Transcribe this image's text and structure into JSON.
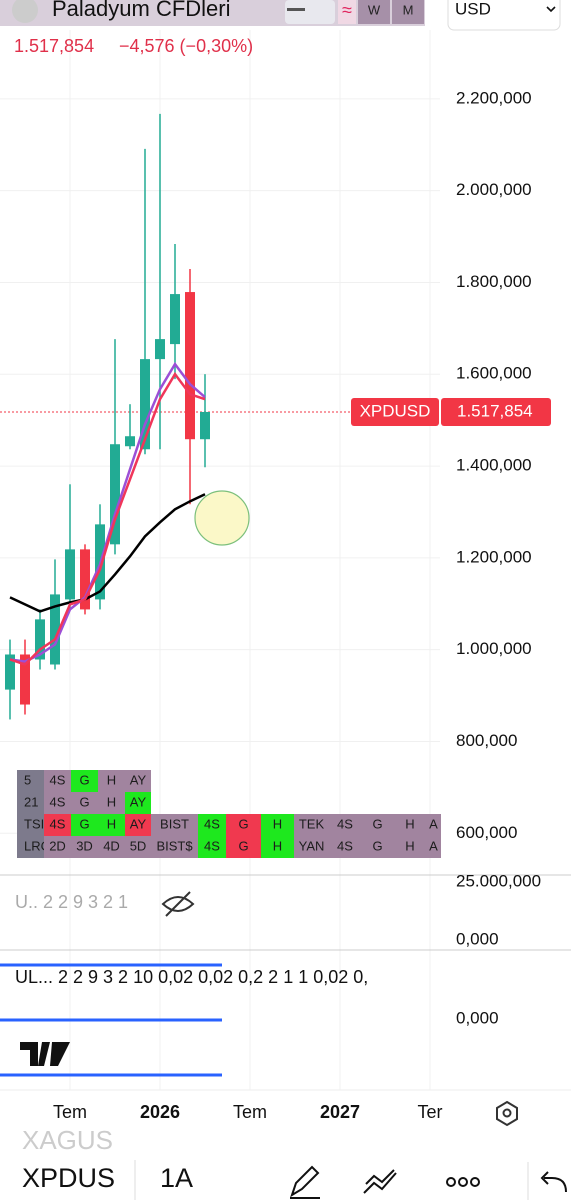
{
  "header": {
    "title": "Paladyum CFDleri",
    "intervals": [
      "W",
      "M"
    ],
    "currency": "USD",
    "change": "−4,576 (−0,30%)"
  },
  "chart_data": {
    "type": "candlestick",
    "categories": [
      null,
      null,
      null,
      null,
      "Tem",
      null,
      null,
      null,
      null,
      null,
      "2026",
      null,
      null,
      null,
      null,
      null,
      "Tem",
      null,
      null,
      null,
      null,
      null,
      "2027",
      null,
      null,
      null,
      null,
      null,
      "Ter"
    ],
    "open": [
      913000,
      989500,
      978600,
      967700,
      1109500,
      1218500,
      1109500,
      1229500,
      1443200,
      1436600,
      1633000,
      1665700,
      1779100,
      1458500,
      null,
      null,
      null,
      null,
      null,
      null,
      null,
      null,
      null,
      null,
      null,
      null,
      null,
      null,
      null
    ],
    "high": [
      1022000,
      1022000,
      1087700,
      1196700,
      1360300,
      1229500,
      1316700,
      1676600,
      1534800,
      2091000,
      2167300,
      1883800,
      1829200,
      1600200,
      null,
      null,
      null,
      null,
      null,
      null,
      null,
      null,
      null,
      null,
      null,
      null,
      null,
      null,
      null
    ],
    "low": [
      848000,
      858700,
      956800,
      956800,
      1087700,
      1076800,
      1087700,
      1207600,
      1436600,
      1425700,
      1436600,
      1589300,
      1316700,
      1397400,
      null,
      null,
      null,
      null,
      null,
      null,
      null,
      null,
      null,
      null,
      null,
      null,
      null,
      null,
      null
    ],
    "close": [
      989500,
      880500,
      1066000,
      1120400,
      1218500,
      1087700,
      1273000,
      1447600,
      1465000,
      1633000,
      1676600,
      1774700,
      1458500,
      1517854,
      null,
      null,
      null,
      null,
      null,
      null,
      null,
      null,
      null,
      null,
      null,
      null,
      null,
      null,
      null
    ],
    "up_color": "#22ab94",
    "down_color": "#f23645",
    "lines": [
      {
        "color": "#000000",
        "values": [
          1113900,
          1098600,
          1083300,
          1094200,
          1103000,
          1109500,
          1126900,
          1164000,
          1203300,
          1246900,
          1277400,
          1305800,
          1323200,
          1338500,
          null,
          null,
          null,
          null,
          null,
          null,
          null,
          null,
          null,
          null,
          null,
          null,
          null,
          null,
          null
        ]
      },
      {
        "color": "#9c4fd6",
        "values": [
          978600,
          974300,
          989500,
          1011400,
          1087700,
          1113900,
          1185800,
          1294900,
          1393000,
          1491200,
          1567500,
          1622000,
          1578400,
          1550100,
          null,
          null,
          null,
          null,
          null,
          null,
          null,
          null,
          null,
          null,
          null,
          null,
          null,
          null,
          null
        ]
      },
      {
        "color": "#f0365a",
        "values": [
          978600,
          967700,
          1000500,
          1022300,
          1098600,
          1109500,
          1174900,
          1284000,
          1371200,
          1458500,
          1545700,
          1600200,
          1556600,
          1545700,
          null,
          null,
          null,
          null,
          null,
          null,
          null,
          null,
          null,
          null,
          null,
          null,
          null,
          null,
          null
        ]
      }
    ],
    "last": {
      "value": 1517854,
      "label": "1.517,854"
    },
    "symbol": "XPDUSD",
    "ylim": [
      520000,
      2350000
    ],
    "yticks": [
      {
        "value": 600000,
        "label": "600,000"
      },
      {
        "value": 800000,
        "label": "800,000"
      },
      {
        "value": 1000000,
        "label": "1.000,000"
      },
      {
        "value": 1200000,
        "label": "1.200,000"
      },
      {
        "value": 1400000,
        "label": "1.400,000"
      },
      {
        "value": 1600000,
        "label": "1.600,000"
      },
      {
        "value": 1800000,
        "label": "1.800,000"
      },
      {
        "value": 2000000,
        "label": "2.000,000"
      },
      {
        "value": 2200000,
        "label": "2.200,000"
      }
    ],
    "grid": true
  },
  "table": {
    "rows": [
      [
        "5",
        "4S",
        "G",
        "H",
        "AY"
      ],
      [
        "21",
        "4S",
        "G",
        "H",
        "AY"
      ],
      [
        "TSI",
        "4S",
        "G",
        "H",
        "AY",
        "BIST",
        "4S",
        "G",
        "H",
        "TEK",
        "4S",
        "G",
        "H",
        "A"
      ],
      [
        "LRC",
        "2D",
        "3D",
        "4D",
        "5D",
        "BIST$",
        "4S",
        "G",
        "H",
        "YAN",
        "4S",
        "G",
        "H",
        "A"
      ]
    ],
    "colors": [
      [
        "gray",
        "mauve",
        "green",
        "mauve",
        "mauve"
      ],
      [
        "gray",
        "mauve",
        "mauve",
        "mauve",
        "green"
      ],
      [
        "gray",
        "red",
        "green",
        "green",
        "red",
        "mauve",
        "green",
        "red",
        "green",
        "mauve",
        "mauve",
        "mauve",
        "mauve",
        "mauve"
      ],
      [
        "gray",
        "mauve",
        "mauve",
        "mauve",
        "mauve",
        "mauve",
        "green",
        "red",
        "green",
        "mauve",
        "mauve",
        "mauve",
        "mauve",
        "mauve"
      ]
    ]
  },
  "panes": [
    {
      "legend": "U.. 2 2 9 3 2 1",
      "top_label": "25.000,000",
      "bottom_label": "0,000"
    },
    {
      "legend": "UL...  2 2 9 3 2 10 0,02 0,02 0,2 2 1 1 0,02 0,",
      "label": "0,000"
    }
  ],
  "footer": {
    "previous_symbol": "XAGUS",
    "symbol": "XPDUS",
    "interval": "1A"
  }
}
